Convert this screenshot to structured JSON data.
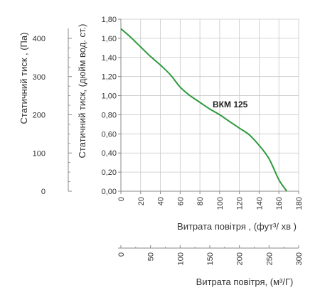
{
  "chart_data": {
    "type": "line",
    "series": [
      {
        "name": "ВКМ 125",
        "x": [
          0,
          10,
          20,
          30,
          40,
          50,
          60,
          70,
          80,
          90,
          100,
          110,
          120,
          130,
          140,
          150,
          160,
          168
        ],
        "y": [
          1.7,
          1.61,
          1.51,
          1.41,
          1.32,
          1.22,
          1.09,
          1.0,
          0.93,
          0.86,
          0.8,
          0.73,
          0.66,
          0.59,
          0.48,
          0.34,
          0.12,
          0.0
        ]
      }
    ],
    "x_axis_primary": {
      "label": "Витрата повітря , (фут³/  хв )",
      "range": [
        0,
        180
      ],
      "ticks": [
        0,
        20,
        40,
        60,
        80,
        100,
        120,
        140,
        160,
        180
      ]
    },
    "y_axis_primary": {
      "label": "Статичний тиск, (дюйм вод. ст.)",
      "range": [
        0,
        1.8
      ],
      "tick_labels": [
        "0,00",
        "0,20",
        "0,40",
        "0,60",
        "0,80",
        "1,00",
        "1,20",
        "1,40",
        "1,60",
        "1,80"
      ]
    },
    "y_axis_secondary": {
      "label": "Статичний тиск , (Па)",
      "ticks": [
        0,
        100,
        200,
        300,
        400
      ],
      "tick_labels": [
        "0",
        "100",
        "200",
        "300",
        "400"
      ]
    },
    "x_axis_secondary": {
      "label": "Витрата повітря, (м³/Г)",
      "ticks": [
        0,
        50,
        100,
        150,
        200,
        250,
        300
      ],
      "tick_labels": [
        "0",
        "50",
        "100",
        "150",
        "200",
        "250",
        "300"
      ]
    },
    "grid": true,
    "line_color": "#2e9a3e",
    "grid_color": "#c8c8c8"
  }
}
